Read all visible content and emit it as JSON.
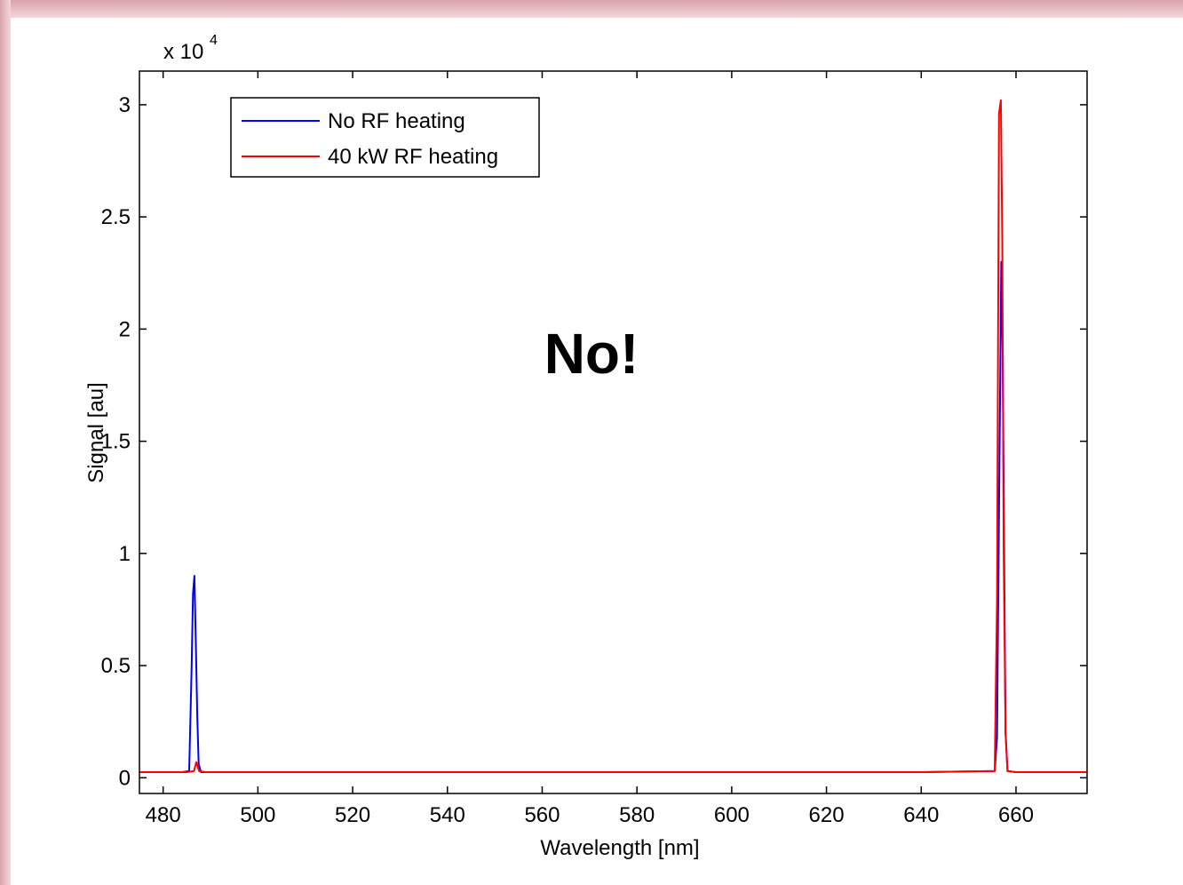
{
  "colors": {
    "frame_pink": "#e7b3bb",
    "axis": "#000000",
    "background": "#ffffff"
  },
  "chart_data": {
    "type": "line",
    "title": "",
    "xlabel": "Wavelength [nm]",
    "ylabel": "Signal [au]",
    "y_multiplier_base": "x 10",
    "y_multiplier_exp": "4",
    "xlim": [
      475,
      675
    ],
    "ylim": [
      -0.07,
      3.15
    ],
    "x_ticks": [
      480,
      500,
      520,
      540,
      560,
      580,
      600,
      620,
      640,
      660
    ],
    "x_tick_labels": [
      "480",
      "500",
      "520",
      "540",
      "560",
      "580",
      "600",
      "620",
      "640",
      "660"
    ],
    "y_ticks": [
      0,
      0.5,
      1,
      1.5,
      2,
      2.5,
      3
    ],
    "y_tick_labels": [
      "0",
      "0.5",
      "1",
      "1.5",
      "2",
      "2.5",
      "3"
    ],
    "grid": false,
    "legend_position": "top-left",
    "annotation": "No!",
    "series": [
      {
        "name": "No RF heating",
        "color": "#0000ff",
        "x": [
          475,
          484,
          485.5,
          486.0,
          486.3,
          486.6,
          486.9,
          487.2,
          487.5,
          488.0,
          490,
          500,
          520,
          560,
          600,
          640,
          655.5,
          656.0,
          656.3,
          656.6,
          656.9,
          657.2,
          657.5,
          657.8,
          658.2,
          660,
          675
        ],
        "y": [
          0.025,
          0.025,
          0.03,
          0.48,
          0.82,
          0.9,
          0.6,
          0.28,
          0.06,
          0.025,
          0.025,
          0.025,
          0.025,
          0.025,
          0.025,
          0.025,
          0.03,
          0.18,
          0.9,
          1.6,
          2.3,
          1.9,
          1.0,
          0.2,
          0.03,
          0.025,
          0.025
        ]
      },
      {
        "name": "40 kW RF heating",
        "color": "#ff0000",
        "x": [
          475,
          485,
          486.5,
          487.0,
          487.6,
          489,
          500,
          540,
          600,
          640,
          655.5,
          656.0,
          656.4,
          656.8,
          657.1,
          657.4,
          657.8,
          658.2,
          660,
          675
        ],
        "y": [
          0.025,
          0.025,
          0.03,
          0.07,
          0.03,
          0.025,
          0.025,
          0.025,
          0.025,
          0.025,
          0.03,
          0.8,
          2.96,
          3.02,
          2.4,
          1.0,
          0.2,
          0.03,
          0.025,
          0.025
        ]
      }
    ]
  }
}
